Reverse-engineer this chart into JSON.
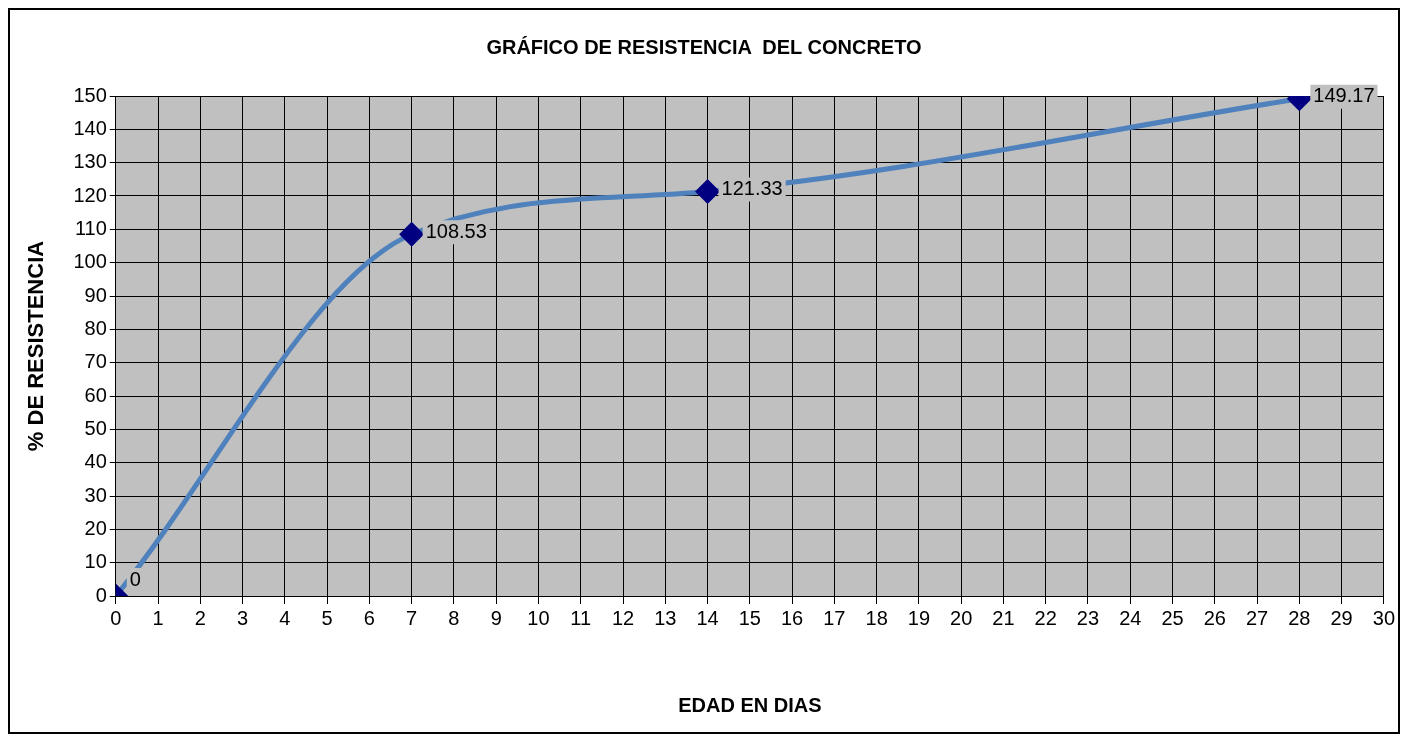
{
  "chart_data": {
    "type": "line",
    "title": "GRÁFICO DE RESISTENCIA  DEL CONCRETO",
    "xlabel": "EDAD EN DIAS",
    "ylabel": "% DE RESISTENCIA",
    "x": [
      0,
      7,
      14,
      28
    ],
    "series": [
      {
        "color": "#4f81bd",
        "colors": [
          "#000080",
          "#000080",
          "#000080",
          "#000080"
        ],
        "values": [
          0,
          108.53,
          121.33,
          149.17
        ]
      }
    ],
    "xlim": [
      0,
      30
    ],
    "xticks": [
      0,
      1,
      2,
      3,
      4,
      5,
      6,
      7,
      8,
      9,
      10,
      11,
      12,
      13,
      14,
      15,
      16,
      17,
      18,
      19,
      20,
      21,
      22,
      23,
      24,
      25,
      26,
      27,
      28,
      29,
      30
    ],
    "ylim": [
      0,
      150
    ],
    "yticks": [
      0,
      10,
      20,
      30,
      40,
      50,
      60,
      70,
      80,
      90,
      100,
      110,
      120,
      130,
      140,
      150
    ],
    "grid": true,
    "legend": false,
    "marker": "diamond",
    "line_style": "solid",
    "data_labels": true
  }
}
